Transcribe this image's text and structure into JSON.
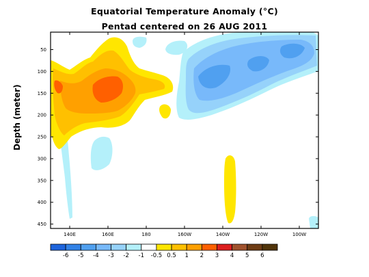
{
  "chart_data": {
    "type": "heatmap",
    "title": "Equatorial Temperature Anomaly (°C)",
    "subtitle": "Pentad centered on 26 AUG 2011",
    "xlabel": "",
    "ylabel": "Depth (meter)",
    "x_range": [
      "130E",
      "80W"
    ],
    "ylim": [
      460,
      10
    ],
    "x_ticks": [
      "140E",
      "160E",
      "180",
      "160W",
      "140W",
      "120W",
      "100W"
    ],
    "y_ticks": [
      "50",
      "100",
      "150",
      "200",
      "250",
      "300",
      "350",
      "400",
      "450"
    ],
    "contour_levels": [
      -6,
      -5,
      -4,
      -3,
      -2,
      -1,
      -0.5,
      0.5,
      1,
      2,
      3,
      4,
      5,
      6
    ],
    "colorbar_labels": [
      "-6",
      "-5",
      "-4",
      "-3",
      "-2",
      "-1",
      "-0.5",
      "0.5",
      "1",
      "2",
      "3",
      "4",
      "5",
      "6"
    ],
    "colorbar_colors": [
      "#1e64dc",
      "#3282e6",
      "#50a0f0",
      "#78b9fa",
      "#96d2fa",
      "#b4f0fa",
      "#ffffff",
      "#ffe600",
      "#ffc000",
      "#ffa000",
      "#ff6000",
      "#dc1e1e",
      "#a0522d",
      "#6e3c14",
      "#50340a"
    ],
    "features": [
      {
        "name": "warm core, western Pacific thermocline",
        "longitude": "140E-170W",
        "depth_m": [
          80,
          200
        ],
        "anomaly_c": [
          0.5,
          3
        ]
      },
      {
        "name": "strongest warm core",
        "longitude": "150E-175E",
        "depth_m": [
          110,
          180
        ],
        "anomaly_c": 3
      },
      {
        "name": "cold tongue, central-eastern Pacific",
        "longitude": "155W-85W",
        "depth_m": [
          20,
          180
        ],
        "anomaly_c": [
          -0.5,
          -2
        ]
      },
      {
        "name": "deep warm patch",
        "longitude": "138W",
        "depth_m": [
          280,
          445
        ],
        "anomaly_c": 0.5
      },
      {
        "name": "deep weak cold patches",
        "longitude": "140E-160E",
        "depth_m": [
          200,
          330
        ],
        "anomaly_c": -0.5
      }
    ]
  },
  "colors": {
    "axis": "#000000",
    "background": "#ffffff"
  }
}
